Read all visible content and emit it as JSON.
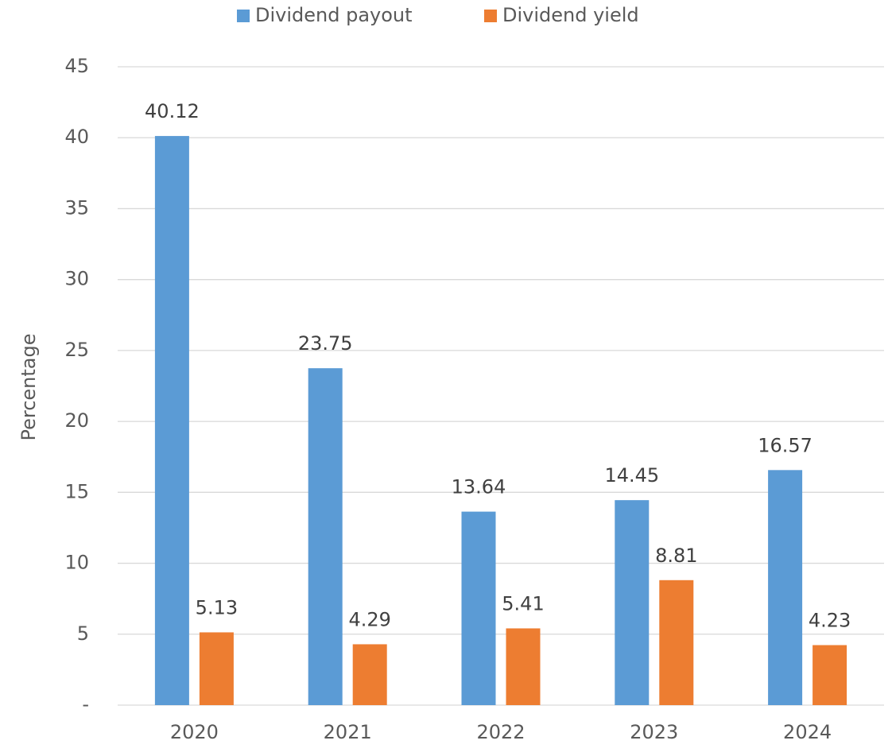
{
  "chart_data": {
    "type": "bar",
    "y_label": "Percentage",
    "categories": [
      "2020",
      "2021",
      "2022",
      "2023",
      "2024"
    ],
    "series": [
      {
        "name": "Dividend payout",
        "color": "#5b9bd5",
        "values": [
          40.12,
          23.75,
          13.64,
          14.45,
          16.57
        ]
      },
      {
        "name": "Dividend yield",
        "color": "#ed7d31",
        "values": [
          5.13,
          4.29,
          5.41,
          8.81,
          4.23
        ]
      }
    ],
    "ylim": [
      0,
      45
    ],
    "yticks": [
      {
        "value": 0,
        "label": "-"
      },
      5,
      10,
      15,
      20,
      25,
      30,
      35,
      40,
      45
    ],
    "grid": true,
    "legend": "top"
  }
}
